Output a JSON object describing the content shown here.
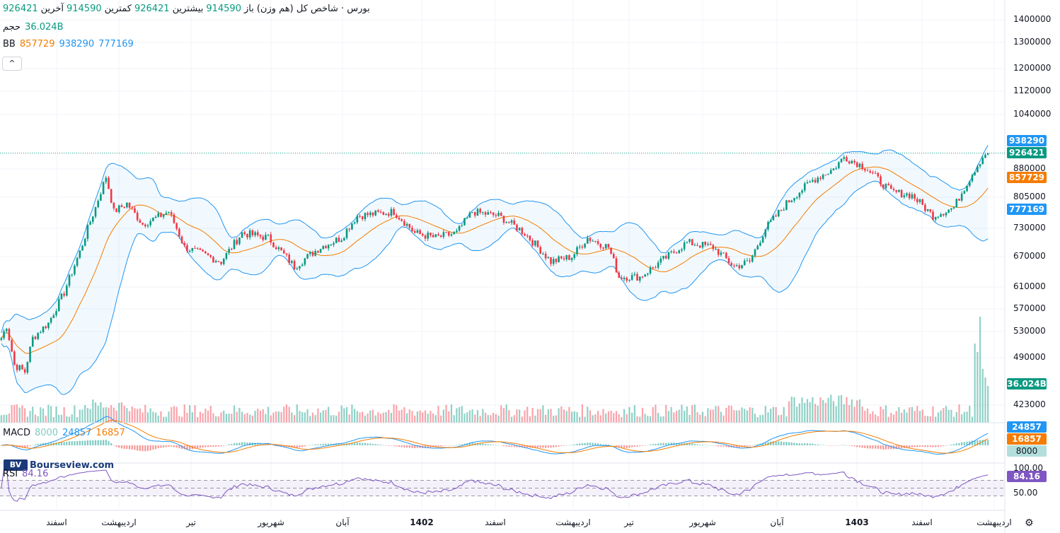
{
  "legend": {
    "title": "بورس · شاخص کل (هم وزن)",
    "open_label": "باز",
    "open_value": "914590",
    "high_label": "بیشترین",
    "high_value": "926421",
    "low_label": "کمترین",
    "low_value": "914590",
    "last_label": "آخرین",
    "last_value": "926421",
    "volume_label": "حجم",
    "volume_value": "36.024B",
    "bb_label": "BB",
    "bb_mid": "857729",
    "bb_upper": "938290",
    "bb_lower": "777169",
    "macd_label": "MACD",
    "macd_hist": "8000",
    "macd_line": "24857",
    "macd_signal": "16857",
    "rsi_label": "RSI",
    "rsi_value": "84.16",
    "collapse_icon": "^"
  },
  "watermark": {
    "text": "Bourseview.com",
    "logo": "BV"
  },
  "price_axis": [
    "1400000",
    "1300000",
    "1200000",
    "1120000",
    "1040000",
    "880000",
    "805000",
    "730000",
    "670000",
    "610000",
    "570000",
    "530000",
    "490000",
    "423000"
  ],
  "price_tags": {
    "bb_upper": "938290",
    "last": "926421",
    "bb_mid": "857729",
    "bb_lower": "777169",
    "volume": "36.024B"
  },
  "macd_tags": {
    "line": "24857",
    "signal": "16857",
    "hist": "8000"
  },
  "rsi_axis": [
    "100.00",
    "50.00"
  ],
  "rsi_tag": "84.16",
  "time_axis": [
    {
      "label": "اسفند",
      "bold": false
    },
    {
      "label": "اردیبهشت",
      "bold": false
    },
    {
      "label": "تیر",
      "bold": false
    },
    {
      "label": "شهریور",
      "bold": false
    },
    {
      "label": "آبان",
      "bold": false
    },
    {
      "label": "1402",
      "bold": true
    },
    {
      "label": "اسفند",
      "bold": false
    },
    {
      "label": "اردیبهشت",
      "bold": false
    },
    {
      "label": "تیر",
      "bold": false
    },
    {
      "label": "شهریور",
      "bold": false
    },
    {
      "label": "آبان",
      "bold": false
    },
    {
      "label": "1403",
      "bold": true
    },
    {
      "label": "اسفند",
      "bold": false
    },
    {
      "label": "اردیبهشت",
      "bold": false
    }
  ],
  "colors": {
    "up": "#089981",
    "down": "#f23645",
    "bb_band": "#2196f3",
    "bb_mid": "#f57c00",
    "macd": "#2196f3",
    "signal": "#f57c00",
    "rsi": "#7e57c2",
    "rsi_fill": "#ede7f6"
  },
  "chart_data": {
    "type": "candlestick",
    "series_keypoints": [
      {
        "t": 0,
        "close": 520000
      },
      {
        "t": 2,
        "close": 540000
      },
      {
        "t": 5,
        "close": 480000
      },
      {
        "t": 9,
        "close": 470000
      },
      {
        "t": 12,
        "close": 520000
      },
      {
        "t": 18,
        "close": 545000
      },
      {
        "t": 24,
        "close": 600000
      },
      {
        "t": 30,
        "close": 680000
      },
      {
        "t": 36,
        "close": 780000
      },
      {
        "t": 40,
        "close": 860000
      },
      {
        "t": 43,
        "close": 770000
      },
      {
        "t": 48,
        "close": 790000
      },
      {
        "t": 54,
        "close": 740000
      },
      {
        "t": 64,
        "close": 770000
      },
      {
        "t": 70,
        "close": 690000
      },
      {
        "t": 84,
        "close": 660000
      },
      {
        "t": 92,
        "close": 720000
      },
      {
        "t": 102,
        "close": 710000
      },
      {
        "t": 112,
        "close": 650000
      },
      {
        "t": 122,
        "close": 690000
      },
      {
        "t": 130,
        "close": 710000
      },
      {
        "t": 136,
        "close": 760000
      },
      {
        "t": 150,
        "close": 770000
      },
      {
        "t": 158,
        "close": 720000
      },
      {
        "t": 166,
        "close": 710000
      },
      {
        "t": 174,
        "close": 720000
      },
      {
        "t": 180,
        "close": 770000
      },
      {
        "t": 190,
        "close": 760000
      },
      {
        "t": 200,
        "close": 720000
      },
      {
        "t": 210,
        "close": 660000
      },
      {
        "t": 218,
        "close": 670000
      },
      {
        "t": 224,
        "close": 710000
      },
      {
        "t": 232,
        "close": 690000
      },
      {
        "t": 236,
        "close": 630000
      },
      {
        "t": 244,
        "close": 630000
      },
      {
        "t": 252,
        "close": 660000
      },
      {
        "t": 262,
        "close": 700000
      },
      {
        "t": 272,
        "close": 690000
      },
      {
        "t": 280,
        "close": 650000
      },
      {
        "t": 286,
        "close": 660000
      },
      {
        "t": 292,
        "close": 730000
      },
      {
        "t": 300,
        "close": 790000
      },
      {
        "t": 310,
        "close": 850000
      },
      {
        "t": 318,
        "close": 880000
      },
      {
        "t": 322,
        "close": 915000
      },
      {
        "t": 330,
        "close": 885000
      },
      {
        "t": 340,
        "close": 820000
      },
      {
        "t": 348,
        "close": 810000
      },
      {
        "t": 356,
        "close": 760000
      },
      {
        "t": 364,
        "close": 780000
      },
      {
        "t": 372,
        "close": 880000
      },
      {
        "t": 376,
        "close": 926421
      }
    ],
    "last": {
      "open": 914590,
      "high": 926421,
      "low": 914590,
      "close": 926421
    },
    "bollinger": {
      "middle": 857729,
      "upper": 938290,
      "lower": 777169
    },
    "volume_last": "36.024B",
    "macd": {
      "macd": 24857,
      "signal": 16857,
      "hist": 8000
    },
    "rsi_last": 84.16,
    "ylim": [
      423000,
      1400000
    ],
    "rsi_ylim": [
      0,
      100
    ]
  }
}
